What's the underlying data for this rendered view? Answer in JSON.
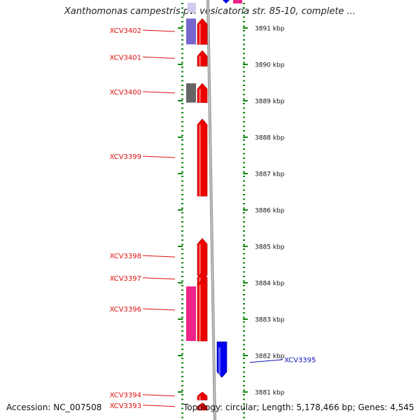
{
  "title": "Xanthomonas campestris pv. vesicatoria str. 85-10, complete ...",
  "footer": {
    "accession": "Accession: NC_007508",
    "summary": "Topology: circular; Length: 5,178,466 bp; Genes: 4,545"
  },
  "scale": {
    "unit": "kbp",
    "ticks": [
      {
        "label": "3891 kbp",
        "kbp": 3891
      },
      {
        "label": "3890 kbp",
        "kbp": 3890
      },
      {
        "label": "3889 kbp",
        "kbp": 3889
      },
      {
        "label": "3888 kbp",
        "kbp": 3888
      },
      {
        "label": "3887 kbp",
        "kbp": 3887
      },
      {
        "label": "3886 kbp",
        "kbp": 3886
      },
      {
        "label": "3885 kbp",
        "kbp": 3885
      },
      {
        "label": "3884 kbp",
        "kbp": 3884
      },
      {
        "label": "3883 kbp",
        "kbp": 3883
      },
      {
        "label": "3882 kbp",
        "kbp": 3882
      },
      {
        "label": "3881 kbp",
        "kbp": 3881
      }
    ]
  },
  "colors": {
    "forward_gene": "#ee0000",
    "reverse_gene": "#0000ee",
    "label_red": "#dd1111",
    "label_blue": "#1111bb",
    "cog_pink": "#ee2288",
    "cog_purple": "#7766cc",
    "cog_gray": "#666666",
    "tick_green": "#118811",
    "backbone": "#999999"
  },
  "genes": [
    {
      "label": "XCV3402",
      "strand": "forward",
      "start_kbp": 3890.55,
      "end_kbp": 3891.26
    },
    {
      "label": "XCV3401",
      "strand": "forward",
      "start_kbp": 3889.95,
      "end_kbp": 3890.38
    },
    {
      "label": "XCV3400",
      "strand": "forward",
      "start_kbp": 3888.95,
      "end_kbp": 3889.48
    },
    {
      "label": "XCV3399",
      "strand": "forward",
      "start_kbp": 3886.38,
      "end_kbp": 3888.5
    },
    {
      "label": "XCV3398",
      "strand": "forward",
      "start_kbp": 3884.2,
      "end_kbp": 3885.22
    },
    {
      "label": "XCV3397",
      "strand": "forward",
      "start_kbp": 3883.9,
      "end_kbp": 3884.3
    },
    {
      "label": "XCV3396",
      "strand": "forward",
      "start_kbp": 3882.4,
      "end_kbp": 3884.1
    },
    {
      "label": "XCV3395",
      "strand": "reverse",
      "start_kbp": 3881.4,
      "end_kbp": 3882.38
    },
    {
      "label": "XCV3394",
      "strand": "forward",
      "start_kbp": 3880.78,
      "end_kbp": 3881.0
    },
    {
      "label": "XCV3393",
      "strand": "forward",
      "start_kbp": 3880.5,
      "end_kbp": 3880.7
    }
  ],
  "cog_blocks": [
    {
      "color": "cog_purple",
      "start_kbp": 3890.55,
      "end_kbp": 3891.26
    },
    {
      "color": "cog_gray",
      "start_kbp": 3888.95,
      "end_kbp": 3889.48
    },
    {
      "color": "cog_pink",
      "start_kbp": 3882.4,
      "end_kbp": 3883.9
    }
  ]
}
